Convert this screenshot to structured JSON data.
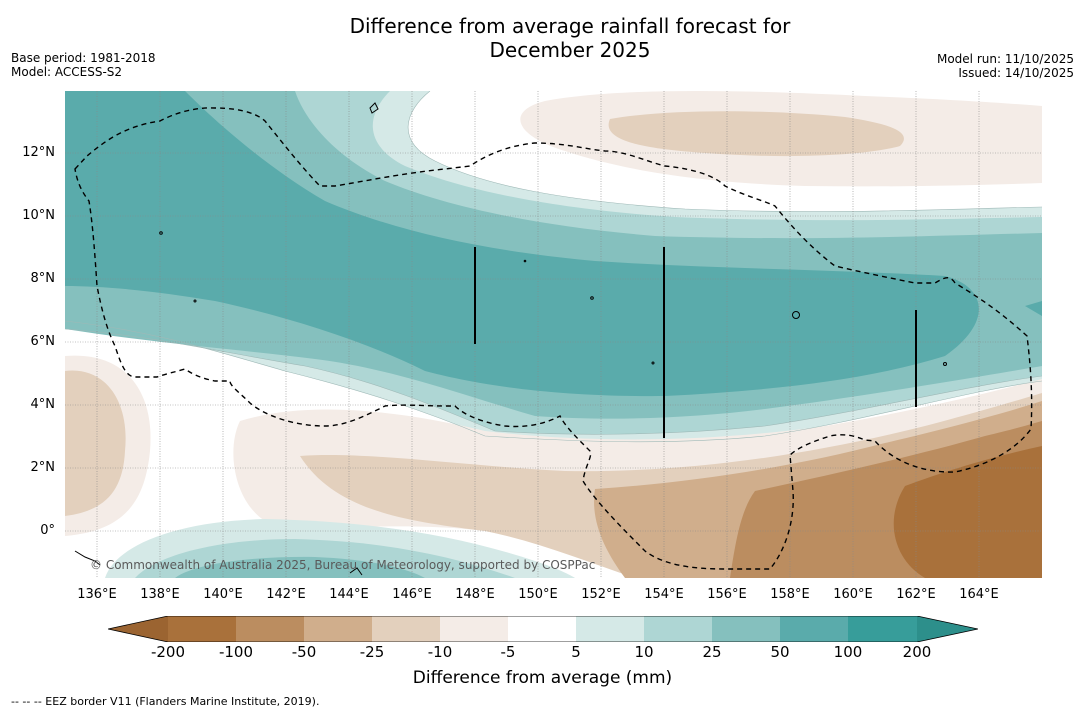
{
  "title": {
    "line1": "Difference from average rainfall forecast for",
    "line2": "December 2025"
  },
  "meta_left": {
    "base_period": "Base period: 1981-2018",
    "model": "Model: ACCESS-S2"
  },
  "meta_right": {
    "model_run": "Model run: 11/10/2025",
    "issued": "Issued: 14/10/2025"
  },
  "map": {
    "lat_labels": [
      "12°N",
      "10°N",
      "8°N",
      "6°N",
      "4°N",
      "2°N",
      "0°"
    ],
    "lon_labels": [
      "136°E",
      "138°E",
      "140°E",
      "142°E",
      "144°E",
      "146°E",
      "148°E",
      "150°E",
      "152°E",
      "154°E",
      "156°E",
      "158°E",
      "160°E",
      "162°E",
      "164°E"
    ],
    "copyright": "© Commonwealth of Australia 2025, Bureau of Meteorology, supported by COSPPac"
  },
  "colorbar": {
    "label": "Difference from average (mm)",
    "ticks": [
      "-200",
      "-100",
      "-50",
      "-25",
      "-10",
      "-5",
      "5",
      "10",
      "25",
      "50",
      "100",
      "200"
    ],
    "colors": [
      "#a9713b",
      "#bb8d60",
      "#d0ae8c",
      "#e3d0bd",
      "#f4ece7",
      "#ffffff",
      "#d5e9e7",
      "#aed6d4",
      "#85c0be",
      "#5aabab",
      "#379d9a"
    ],
    "under_color": "#9b6431",
    "over_color": "#2d8f8b"
  },
  "footnote": "--  --  -- EEZ border V11 (Flanders Marine Institute, 2019)."
}
